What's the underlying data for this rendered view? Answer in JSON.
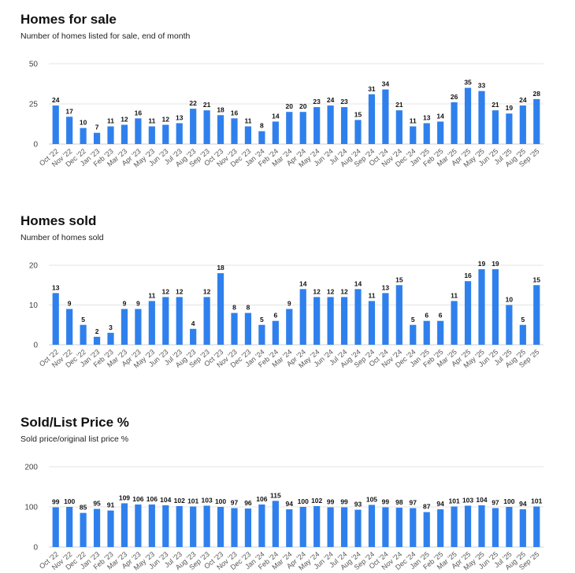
{
  "chart_data": [
    {
      "type": "bar",
      "title": "Homes for sale",
      "subtitle": "Number of homes listed for sale, end of month",
      "categories": [
        "Oct '22",
        "Nov '22",
        "Dec '22",
        "Jan '23",
        "Feb '23",
        "Mar '23",
        "Apr '23",
        "May '23",
        "Jun '23",
        "Jul '23",
        "Aug '23",
        "Sep '23",
        "Oct '23",
        "Nov '23",
        "Dec '23",
        "Jan '24",
        "Feb '24",
        "Mar '24",
        "Apr '24",
        "May '24",
        "Jun '24",
        "Jul '24",
        "Aug '24",
        "Sep '24",
        "Oct '24",
        "Nov '24",
        "Dec '24",
        "Jan '25",
        "Feb '25",
        "Mar '25",
        "Apr '25",
        "May '25",
        "Jun '25",
        "Jul '25",
        "Aug '25",
        "Sep '25"
      ],
      "values": [
        24,
        17,
        10,
        7,
        11,
        12,
        16,
        11,
        12,
        13,
        22,
        21,
        18,
        16,
        11,
        8,
        14,
        20,
        20,
        23,
        24,
        23,
        15,
        31,
        34,
        21,
        11,
        13,
        14,
        26,
        35,
        33,
        21,
        19,
        24,
        28
      ],
      "yticks": [
        0,
        25,
        50
      ],
      "ylim": [
        0,
        50
      ],
      "color": "#2f80ed"
    },
    {
      "type": "bar",
      "title": "Homes sold",
      "subtitle": "Number of homes sold",
      "categories": [
        "Oct '22",
        "Nov '22",
        "Dec '22",
        "Jan '23",
        "Feb '23",
        "Mar '23",
        "Apr '23",
        "May '23",
        "Jun '23",
        "Jul '23",
        "Aug '23",
        "Sep '23",
        "Oct '23",
        "Nov '23",
        "Dec '23",
        "Jan '24",
        "Feb '24",
        "Mar '24",
        "Apr '24",
        "May '24",
        "Jun '24",
        "Jul '24",
        "Aug '24",
        "Sep '24",
        "Oct '24",
        "Nov '24",
        "Dec '24",
        "Jan '25",
        "Feb '25",
        "Mar '25",
        "Apr '25",
        "May '25",
        "Jun '25",
        "Jul '25",
        "Aug '25",
        "Sep '25"
      ],
      "values": [
        13,
        9,
        5,
        2,
        3,
        9,
        9,
        11,
        12,
        12,
        4,
        12,
        18,
        8,
        8,
        5,
        6,
        9,
        14,
        12,
        12,
        12,
        14,
        11,
        13,
        15,
        5,
        6,
        6,
        11,
        16,
        19,
        19,
        10,
        5,
        15
      ],
      "yticks": [
        0,
        10,
        20
      ],
      "ylim": [
        0,
        20
      ],
      "color": "#2f80ed"
    },
    {
      "type": "bar",
      "title": "Sold/List Price %",
      "subtitle": "Sold price/original list price %",
      "categories": [
        "Oct '22",
        "Nov '22",
        "Dec '22",
        "Jan '23",
        "Feb '23",
        "Mar '23",
        "Apr '23",
        "May '23",
        "Jun '23",
        "Jul '23",
        "Aug '23",
        "Sep '23",
        "Oct '23",
        "Nov '23",
        "Dec '23",
        "Jan '24",
        "Feb '24",
        "Mar '24",
        "Apr '24",
        "May '24",
        "Jun '24",
        "Jul '24",
        "Aug '24",
        "Sep '24",
        "Oct '24",
        "Nov '24",
        "Dec '24",
        "Jan '25",
        "Feb '25",
        "Mar '25",
        "Apr '25",
        "May '25",
        "Jun '25",
        "Jul '25",
        "Aug '25",
        "Sep '25"
      ],
      "values": [
        99,
        100,
        85,
        95,
        91,
        109,
        106,
        106,
        104,
        102,
        101,
        103,
        100,
        97,
        96,
        106,
        115,
        94,
        100,
        102,
        99,
        99,
        93,
        105,
        99,
        98,
        97,
        87,
        94,
        101,
        103,
        104,
        97,
        100,
        94,
        101
      ],
      "yticks": [
        0,
        100,
        200
      ],
      "ylim": [
        0,
        200
      ],
      "color": "#2f80ed"
    }
  ]
}
